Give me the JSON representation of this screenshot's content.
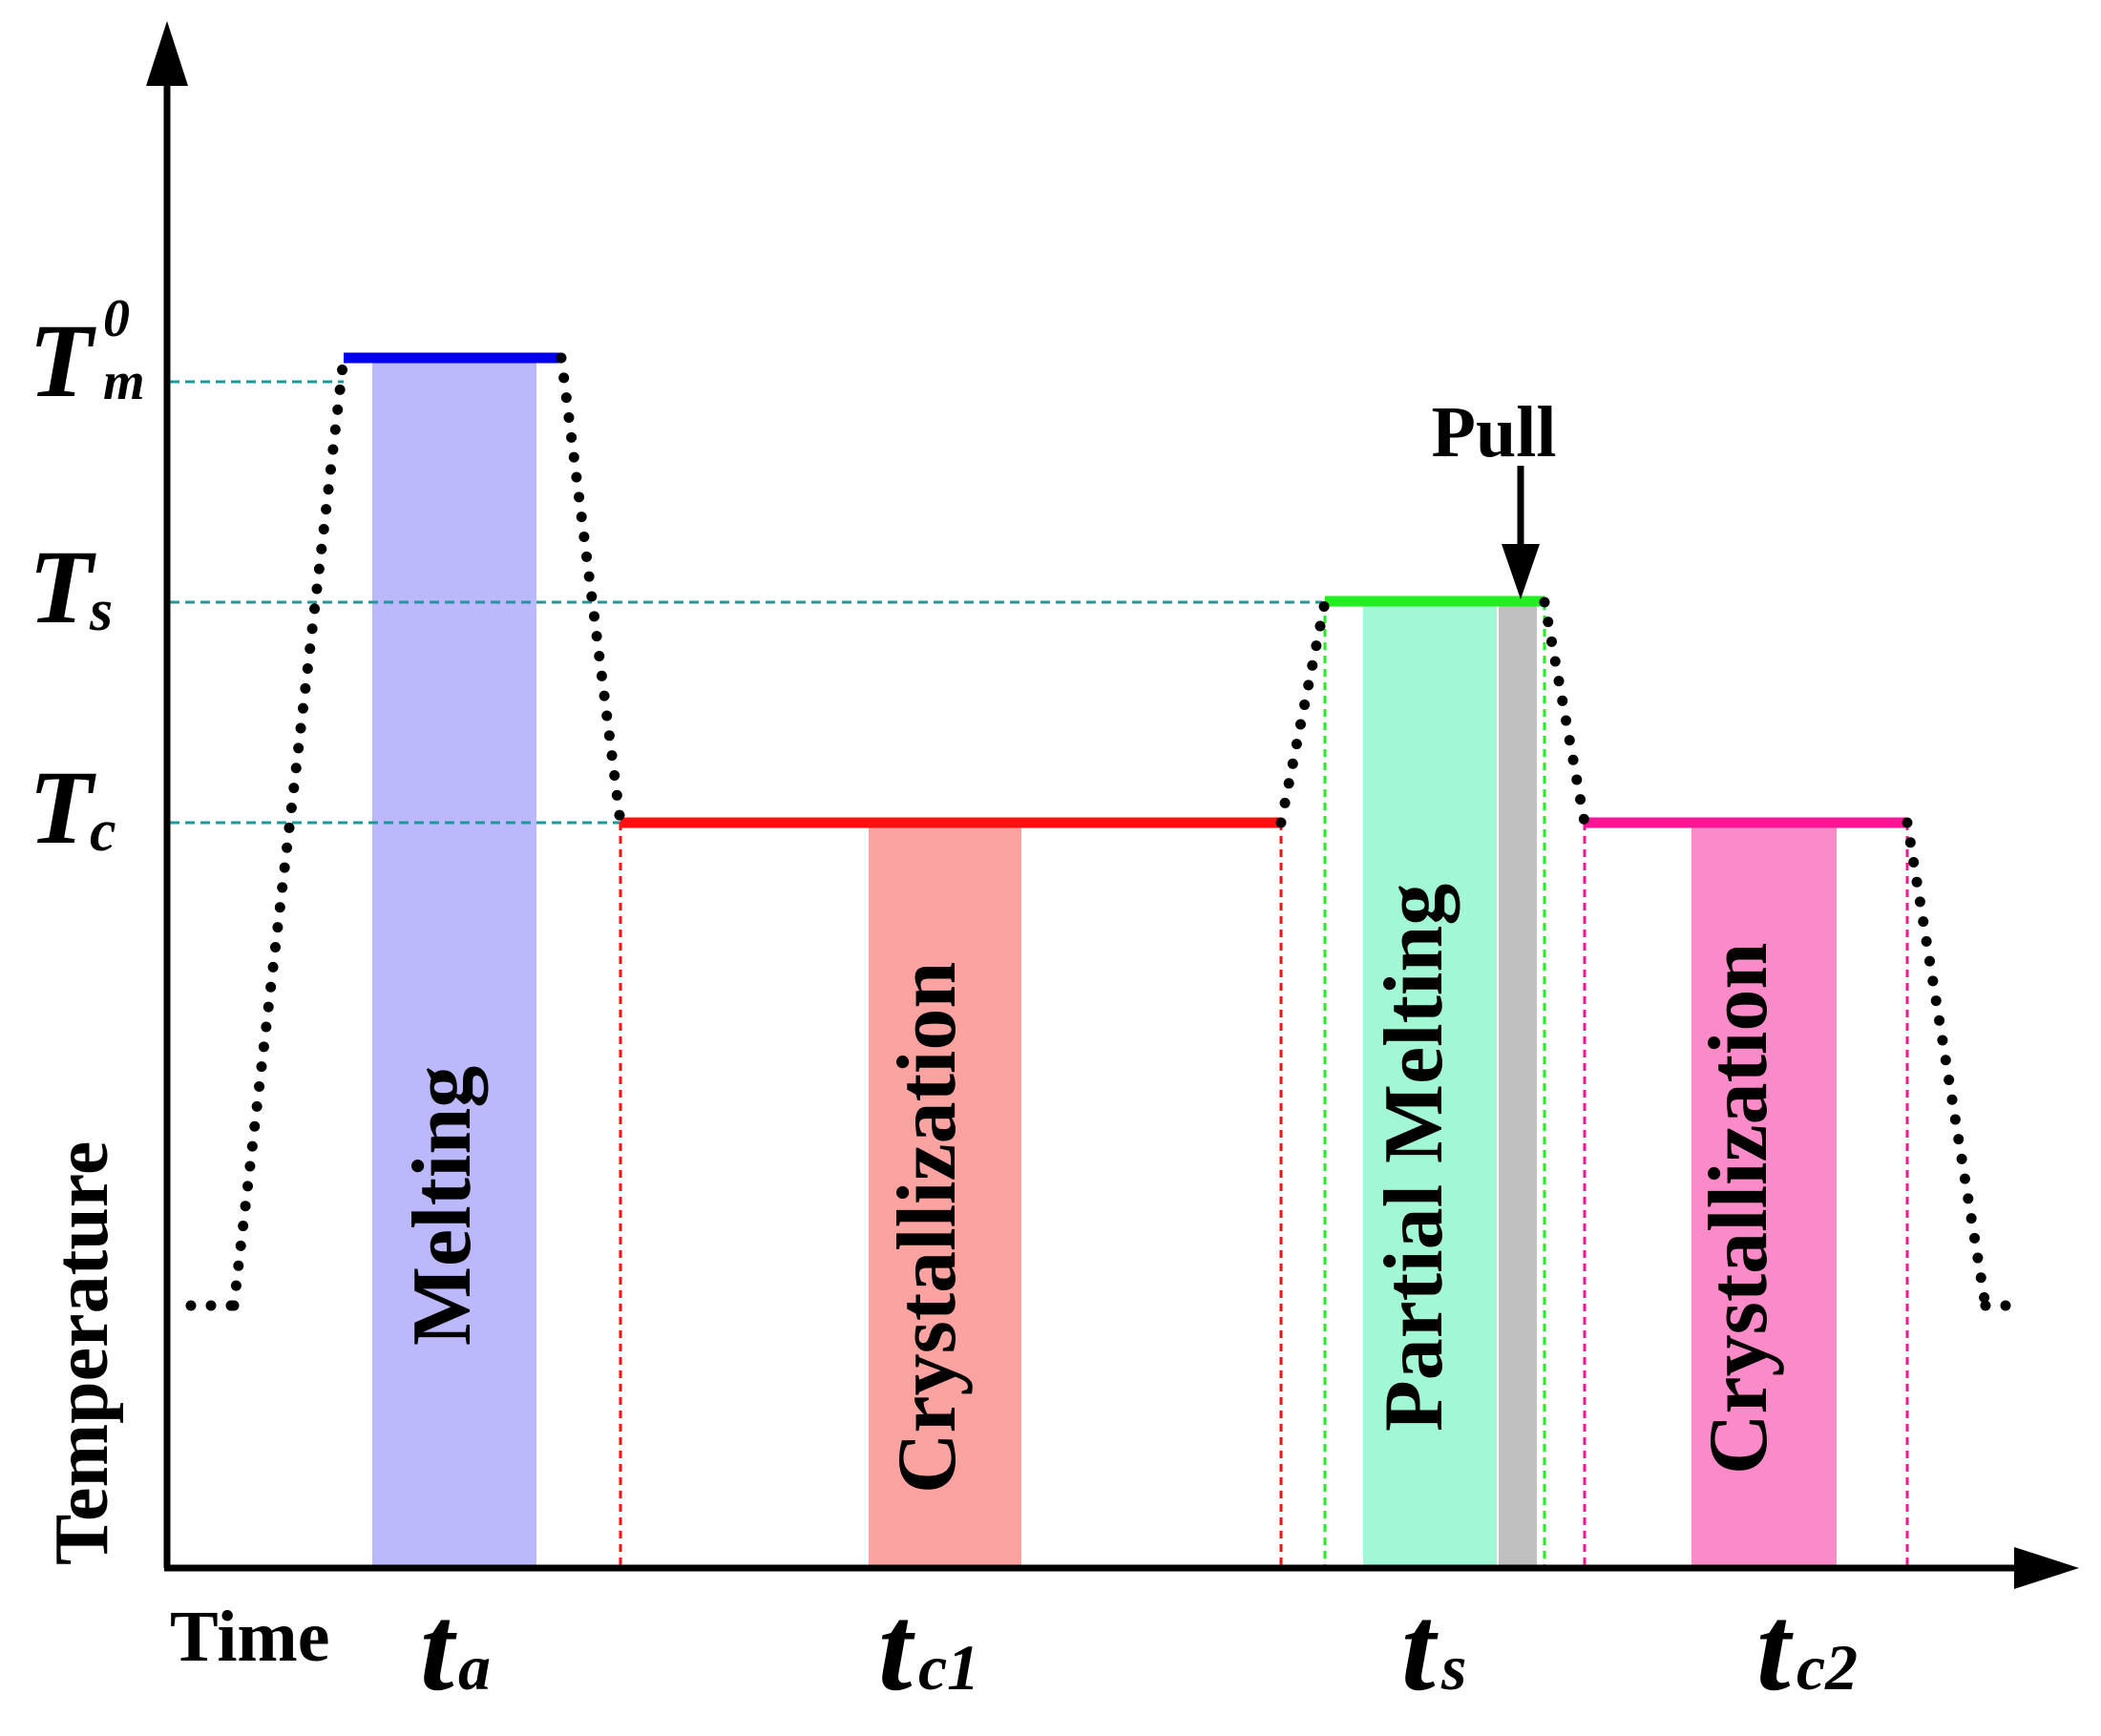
{
  "axes": {
    "y_label": "Temperature",
    "x_label": "Time"
  },
  "temperature_levels": {
    "tm": {
      "main": "T",
      "sub": "m",
      "sup": "0"
    },
    "ts": {
      "main": "T",
      "sub": "s"
    },
    "tc": {
      "main": "T",
      "sub": "c"
    }
  },
  "time_labels": {
    "ta": {
      "main": "t",
      "sub": "a"
    },
    "tc1": {
      "main": "t",
      "sub": "c1"
    },
    "ts": {
      "main": "t",
      "sub": "s"
    },
    "tc2": {
      "main": "t",
      "sub": "c2"
    }
  },
  "stages": {
    "melting": "Melting",
    "crystallization_1": "Crystallization",
    "partial_melting": "Partial Melting",
    "crystallization_2": "Crystallization"
  },
  "pull_label": "Pull",
  "colors": {
    "melting_line": "#0000ee",
    "melting_band": "#bbb8fb",
    "cryst1_line": "#ff1010",
    "cryst1_band": "#fba3a1",
    "partial_line": "#22ee22",
    "partial_band": "#a2f7d4",
    "pull_band": "#c0c0c0",
    "cryst2_line": "#ff1496",
    "cryst2_band": "#fb8ac8",
    "guide": "#1a9a9a"
  }
}
